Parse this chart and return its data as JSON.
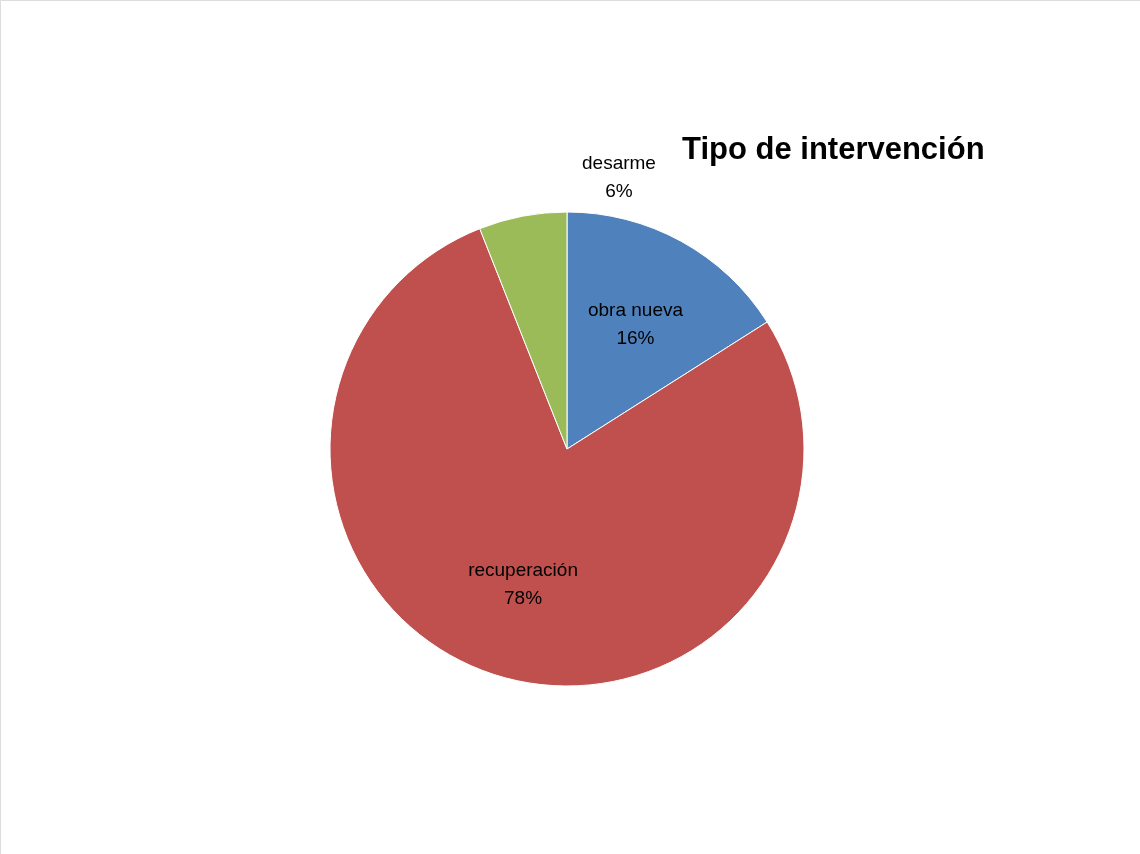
{
  "chart_data": {
    "type": "pie",
    "title": "Tipo de intervención",
    "categories": [
      "obra nueva",
      "recuperación",
      "desarme"
    ],
    "values": [
      16,
      78,
      6
    ],
    "value_labels": [
      "16%",
      "78%",
      "6%"
    ],
    "colors": [
      "#4f81bd",
      "#c0504d",
      "#9bbb59"
    ],
    "legend": false
  }
}
